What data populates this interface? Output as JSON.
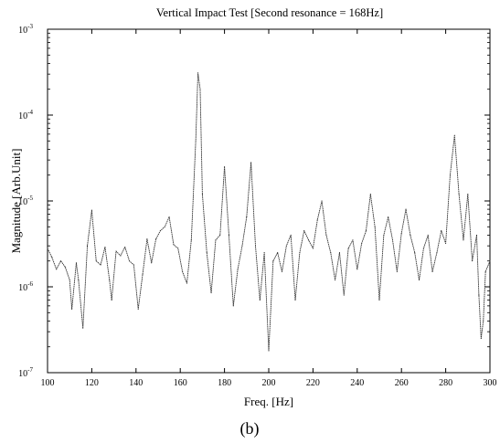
{
  "chart_data": {
    "type": "line",
    "title": "Vertical Impact Test [Second resonance = 168Hz]",
    "xlabel": "Freq. [Hz]",
    "ylabel": "Magnitude [Arb.Unit]",
    "x_scale": "linear",
    "y_scale": "log",
    "xlim": [
      100,
      300
    ],
    "ylim": [
      1e-07,
      0.001
    ],
    "grid": false,
    "x_ticks": [
      100,
      120,
      140,
      160,
      180,
      200,
      220,
      240,
      260,
      280,
      300
    ],
    "y_ticks": [
      {
        "value": 1e-07,
        "base": "10",
        "exp": "-7"
      },
      {
        "value": 1e-06,
        "base": "10",
        "exp": "-6"
      },
      {
        "value": 1e-05,
        "base": "10",
        "exp": "-5"
      },
      {
        "value": 0.0001,
        "base": "10",
        "exp": "-4"
      },
      {
        "value": 0.001,
        "base": "10",
        "exp": "-3"
      }
    ],
    "series": [
      {
        "color": "#333333",
        "points": [
          [
            100,
            2.8e-06
          ],
          [
            102,
            2.2e-06
          ],
          [
            104,
            1.6e-06
          ],
          [
            106,
            2e-06
          ],
          [
            108,
            1.7e-06
          ],
          [
            110,
            1.2e-06
          ],
          [
            111,
            5.5e-07
          ],
          [
            113,
            1.9e-06
          ],
          [
            114,
            1.2e-06
          ],
          [
            116,
            3.3e-07
          ],
          [
            118,
            3e-06
          ],
          [
            120,
            7.8e-06
          ],
          [
            122,
            2e-06
          ],
          [
            124,
            1.8e-06
          ],
          [
            126,
            2.9e-06
          ],
          [
            128,
            1.2e-06
          ],
          [
            129,
            7e-07
          ],
          [
            131,
            2.6e-06
          ],
          [
            133,
            2.3e-06
          ],
          [
            135,
            2.9e-06
          ],
          [
            137,
            2e-06
          ],
          [
            139,
            1.8e-06
          ],
          [
            141,
            5.5e-07
          ],
          [
            143,
            1.4e-06
          ],
          [
            145,
            3.6e-06
          ],
          [
            147,
            1.9e-06
          ],
          [
            149,
            3.6e-06
          ],
          [
            151,
            4.5e-06
          ],
          [
            153,
            5e-06
          ],
          [
            155,
            6.5e-06
          ],
          [
            157,
            3.1e-06
          ],
          [
            159,
            2.8e-06
          ],
          [
            161,
            1.5e-06
          ],
          [
            163,
            1.1e-06
          ],
          [
            165,
            3.5e-06
          ],
          [
            167,
            5e-05
          ],
          [
            168,
            0.00031
          ],
          [
            169,
            0.0002
          ],
          [
            170,
            1.2e-05
          ],
          [
            172,
            2.5e-06
          ],
          [
            174,
            8.5e-07
          ],
          [
            176,
            3.5e-06
          ],
          [
            178,
            4e-06
          ],
          [
            180,
            2.5e-05
          ],
          [
            182,
            4e-06
          ],
          [
            184,
            6e-07
          ],
          [
            186,
            1.6e-06
          ],
          [
            188,
            3e-06
          ],
          [
            190,
            6.5e-06
          ],
          [
            192,
            2.8e-05
          ],
          [
            194,
            3e-06
          ],
          [
            196,
            7e-07
          ],
          [
            198,
            2.5e-06
          ],
          [
            200,
            1.8e-07
          ],
          [
            202,
            2e-06
          ],
          [
            204,
            2.5e-06
          ],
          [
            206,
            1.5e-06
          ],
          [
            208,
            3e-06
          ],
          [
            210,
            4e-06
          ],
          [
            212,
            7e-07
          ],
          [
            214,
            2.5e-06
          ],
          [
            216,
            4.5e-06
          ],
          [
            218,
            3.5e-06
          ],
          [
            220,
            2.8e-06
          ],
          [
            222,
            6e-06
          ],
          [
            224,
            1e-05
          ],
          [
            226,
            4e-06
          ],
          [
            228,
            2.5e-06
          ],
          [
            230,
            1.2e-06
          ],
          [
            232,
            2.5e-06
          ],
          [
            234,
            8e-07
          ],
          [
            236,
            2.8e-06
          ],
          [
            238,
            3.5e-06
          ],
          [
            240,
            1.6e-06
          ],
          [
            242,
            3.2e-06
          ],
          [
            244,
            4.5e-06
          ],
          [
            246,
            1.2e-05
          ],
          [
            248,
            5e-06
          ],
          [
            250,
            7e-07
          ],
          [
            252,
            4e-06
          ],
          [
            254,
            6.5e-06
          ],
          [
            256,
            3.5e-06
          ],
          [
            258,
            1.5e-06
          ],
          [
            260,
            4.2e-06
          ],
          [
            262,
            8e-06
          ],
          [
            264,
            4e-06
          ],
          [
            266,
            2.5e-06
          ],
          [
            268,
            1.2e-06
          ],
          [
            270,
            2.8e-06
          ],
          [
            272,
            4e-06
          ],
          [
            274,
            1.5e-06
          ],
          [
            276,
            2.5e-06
          ],
          [
            278,
            4.5e-06
          ],
          [
            280,
            3.2e-06
          ],
          [
            282,
            2e-05
          ],
          [
            284,
            5.8e-05
          ],
          [
            286,
            1.2e-05
          ],
          [
            288,
            3.5e-06
          ],
          [
            290,
            1.2e-05
          ],
          [
            292,
            2e-06
          ],
          [
            294,
            4e-06
          ],
          [
            295,
            8e-07
          ],
          [
            296,
            2.5e-07
          ],
          [
            297,
            4e-07
          ],
          [
            298,
            1.5e-06
          ],
          [
            300,
            2e-06
          ]
        ]
      }
    ]
  },
  "caption": "(b)"
}
